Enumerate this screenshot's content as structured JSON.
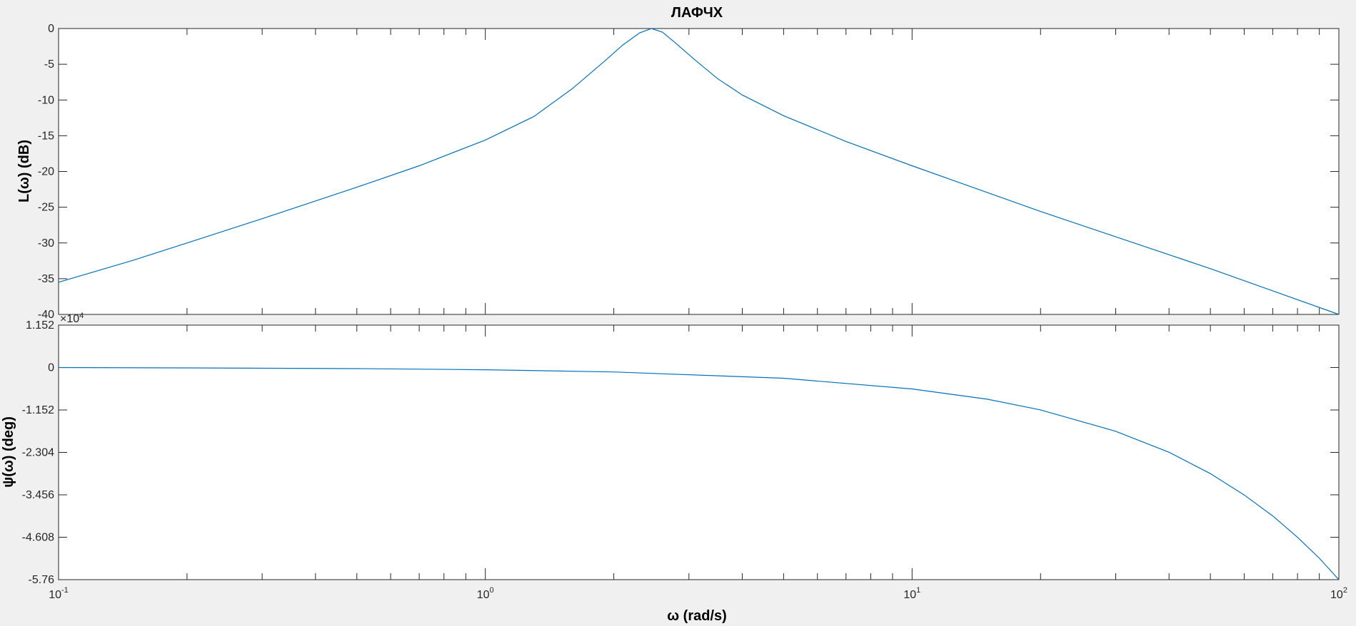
{
  "chart_data": [
    {
      "type": "line",
      "title": "ЛАФЧХ",
      "ylabel": "L(ω) (dB)",
      "xscale": "log",
      "xlim": [
        0.1,
        100
      ],
      "ylim": [
        -40,
        0
      ],
      "yticks": [
        0,
        -5,
        -10,
        -15,
        -20,
        -25,
        -30,
        -35,
        -40
      ],
      "ytick_labels": [
        "0",
        "-5",
        "-10",
        "-15",
        "-20",
        "-25",
        "-30",
        "-35",
        "-40"
      ],
      "grid": false,
      "color": "#0072bd",
      "series": [
        {
          "x": [
            0.1,
            0.15,
            0.2,
            0.3,
            0.5,
            0.7,
            1.0,
            1.3,
            1.6,
            1.9,
            2.1,
            2.3,
            2.45,
            2.6,
            2.8,
            3.1,
            3.5,
            4.0,
            5.0,
            7.0,
            10.0,
            20.0,
            50.0,
            100.0
          ],
          "y": [
            -35.5,
            -32.4,
            -30.0,
            -26.6,
            -22.2,
            -19.2,
            -15.6,
            -12.3,
            -8.4,
            -4.6,
            -2.3,
            -0.6,
            0.0,
            -0.5,
            -2.1,
            -4.4,
            -7.0,
            -9.3,
            -12.2,
            -15.8,
            -19.2,
            -25.6,
            -33.6,
            -40.0
          ]
        }
      ]
    },
    {
      "type": "line",
      "xlabel": "ω  (rad/s)",
      "ylabel": "ψ(ω) (deg)",
      "xscale": "log",
      "xlim": [
        0.1,
        100
      ],
      "xtick_labels": [
        {
          "base": "10",
          "exp": "-1"
        },
        {
          "base": "10",
          "exp": "0"
        },
        {
          "base": "10",
          "exp": "1"
        },
        {
          "base": "10",
          "exp": "2"
        }
      ],
      "ylim": [
        -5.76,
        1.152
      ],
      "y_multiplier": "×10",
      "y_multiplier_exp": "4",
      "yticks": [
        1.152,
        0,
        -1.152,
        -2.304,
        -3.456,
        -4.608,
        -5.76
      ],
      "ytick_labels": [
        "1.152",
        "0",
        "-1.152",
        "-2.304",
        "-3.456",
        "-4.608",
        "-5.76"
      ],
      "grid": false,
      "color": "#0072bd",
      "series": [
        {
          "x": [
            0.1,
            0.2,
            0.5,
            1.0,
            2.0,
            5.0,
            10.0,
            15.0,
            20.0,
            30.0,
            40.0,
            50.0,
            60.0,
            70.0,
            80.0,
            90.0,
            100.0
          ],
          "y": [
            0.0,
            -0.01,
            -0.03,
            -0.06,
            -0.12,
            -0.29,
            -0.58,
            -0.86,
            -1.15,
            -1.73,
            -2.3,
            -2.88,
            -3.46,
            -4.03,
            -4.61,
            -5.18,
            -5.76
          ]
        }
      ]
    }
  ]
}
